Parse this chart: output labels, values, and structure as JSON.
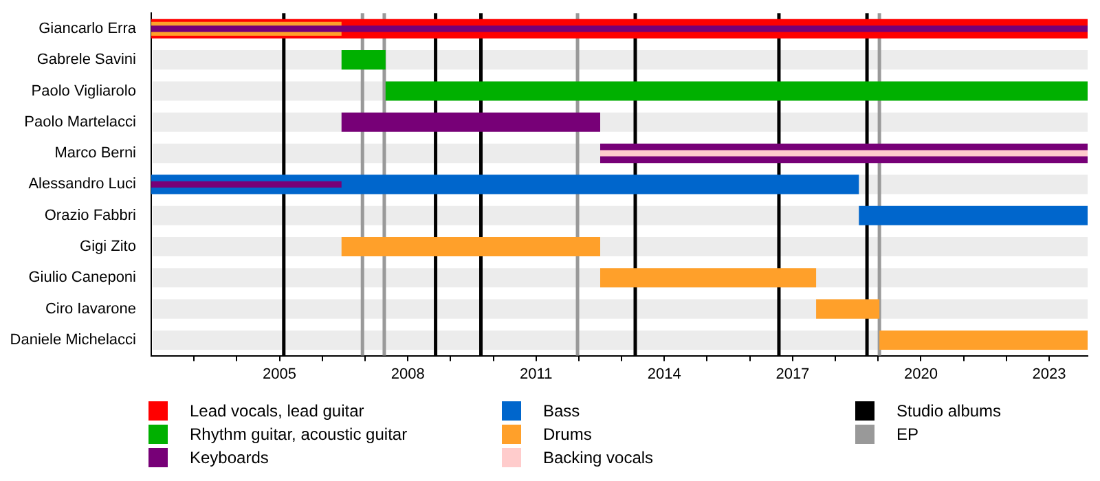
{
  "chart_data": {
    "type": "bar",
    "orientation": "horizontal",
    "categories": [
      "Giancarlo Erra",
      "Gabrele Savini",
      "Paolo Vigliarolo",
      "Paolo Martelacci",
      "Marco Berni",
      "Alessandro Luci",
      "Orazio Fabbri",
      "Gigi Zito",
      "Giulio Caneponi",
      "Ciro Iavarone",
      "Daniele Michelacci"
    ],
    "series": [
      {
        "name": "Lead vocals, lead guitar",
        "color": "#ff0000",
        "base": [
          2002,
          null,
          null,
          null,
          null,
          null,
          null,
          null,
          null,
          null,
          null
        ],
        "values": [
          21.9,
          null,
          null,
          null,
          null,
          null,
          null,
          null,
          null,
          null,
          null
        ]
      },
      {
        "name": "Rhythm guitar, acoustic guitar",
        "color": "#00b000",
        "base": [
          null,
          2006.45,
          2007.48,
          null,
          null,
          null,
          null,
          null,
          null,
          null,
          null
        ],
        "values": [
          null,
          1.03,
          16.42,
          null,
          null,
          null,
          null,
          null,
          null,
          null,
          null
        ]
      },
      {
        "name": "Keyboards",
        "color": "#770077",
        "base": [
          2002,
          null,
          null,
          2006.45,
          2012.5,
          2002,
          null,
          null,
          null,
          null,
          null
        ],
        "values": [
          21.9,
          null,
          null,
          6.05,
          11.4,
          4.45,
          null,
          null,
          null,
          null,
          null
        ]
      },
      {
        "name": "Bass",
        "color": "#0066cc",
        "base": [
          null,
          null,
          null,
          null,
          null,
          2002,
          2018.55,
          null,
          null,
          null,
          null
        ],
        "values": [
          null,
          null,
          null,
          null,
          null,
          16.55,
          5.35,
          null,
          null,
          null,
          null
        ]
      },
      {
        "name": "Drums",
        "color": "#ffa02a",
        "base": [
          2002,
          null,
          null,
          null,
          null,
          null,
          null,
          2006.45,
          2012.5,
          2017.55,
          2019.03
        ],
        "values": [
          4.45,
          null,
          null,
          null,
          null,
          null,
          null,
          6.05,
          5.05,
          1.48,
          4.87
        ]
      },
      {
        "name": "Backing vocals",
        "color": "#ffcccc",
        "base": [
          null,
          null,
          null,
          null,
          2012.5,
          null,
          null,
          null,
          null,
          null,
          null
        ],
        "values": [
          null,
          null,
          null,
          null,
          11.4,
          null,
          null,
          null,
          null,
          null,
          null
        ]
      }
    ],
    "xlim": [
      2002,
      2023.9
    ],
    "xticks": [
      {
        "value": 2003,
        "label": null
      },
      {
        "value": 2004,
        "label": null
      },
      2005,
      {
        "value": 2006,
        "label": null
      },
      {
        "value": 2007,
        "label": null
      },
      2008,
      {
        "value": 2009,
        "label": null
      },
      {
        "value": 2010,
        "label": null
      },
      2011,
      {
        "value": 2012,
        "label": null
      },
      {
        "value": 2013,
        "label": null
      },
      2014,
      {
        "value": 2015,
        "label": null
      },
      {
        "value": 2016,
        "label": null
      },
      2017,
      {
        "value": 2018,
        "label": null
      },
      {
        "value": 2019,
        "label": null
      },
      2020,
      {
        "value": 2021,
        "label": null
      },
      {
        "value": 2022,
        "label": null
      },
      2023
    ],
    "ref_lines": [
      {
        "axis": "x",
        "value": 2005.1,
        "label": "Studio albums",
        "color": "#000000"
      },
      {
        "axis": "x",
        "value": 2008.65,
        "color": "#000000"
      },
      {
        "axis": "x",
        "value": 2009.71,
        "color": "#000000"
      },
      {
        "axis": "x",
        "value": 2013.32,
        "color": "#000000"
      },
      {
        "axis": "x",
        "value": 2016.68,
        "color": "#000000"
      },
      {
        "axis": "x",
        "value": 2018.74,
        "color": "#000000"
      },
      {
        "axis": "x",
        "value": 2006.94,
        "label": "EP",
        "color": "#999999"
      },
      {
        "axis": "x",
        "value": 2007.45,
        "color": "#999999"
      },
      {
        "axis": "x",
        "value": 2011.97,
        "color": "#999999"
      },
      {
        "axis": "x",
        "value": 2019.03,
        "color": "#999999"
      }
    ],
    "grid": false,
    "legend": "bottom"
  }
}
